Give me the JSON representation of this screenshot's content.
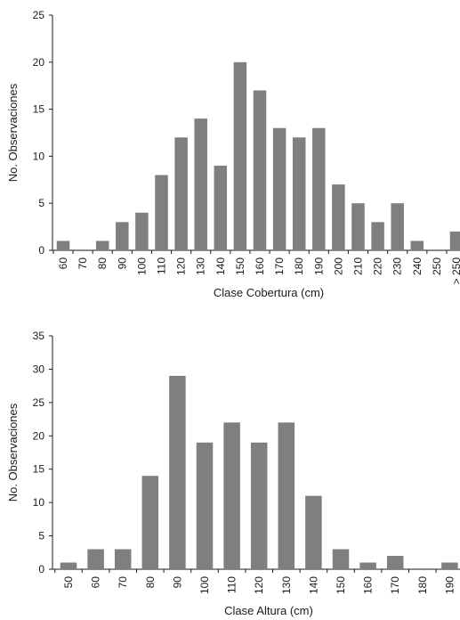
{
  "chart_data": [
    {
      "type": "bar",
      "xlabel": "Clase Cobertura (cm)",
      "ylabel": "No. Observaciones",
      "ylim": [
        0,
        25
      ],
      "yticks": [
        0,
        5,
        10,
        15,
        20,
        25
      ],
      "categories": [
        "60",
        "70",
        "80",
        "90",
        "100",
        "110",
        "120",
        "130",
        "140",
        "150",
        "160",
        "170",
        "180",
        "190",
        "200",
        "210",
        "220",
        "230",
        "240",
        "250",
        "> 250"
      ],
      "values": [
        1,
        0,
        1,
        3,
        4,
        8,
        12,
        14,
        9,
        20,
        17,
        13,
        12,
        13,
        7,
        5,
        3,
        5,
        1,
        0,
        2
      ],
      "bar_color": "#7f7f7f",
      "grid": false
    },
    {
      "type": "bar",
      "xlabel": "Clase Altura (cm)",
      "ylabel": "No. Observaciones",
      "ylim": [
        0,
        35
      ],
      "yticks": [
        0,
        5,
        10,
        15,
        20,
        25,
        30,
        35
      ],
      "categories": [
        "50",
        "60",
        "70",
        "80",
        "90",
        "100",
        "110",
        "120",
        "130",
        "140",
        "150",
        "160",
        "170",
        "180",
        "190"
      ],
      "values": [
        1,
        3,
        3,
        14,
        29,
        19,
        22,
        19,
        22,
        11,
        3,
        1,
        2,
        0,
        1
      ],
      "bar_color": "#7f7f7f",
      "grid": false
    }
  ]
}
